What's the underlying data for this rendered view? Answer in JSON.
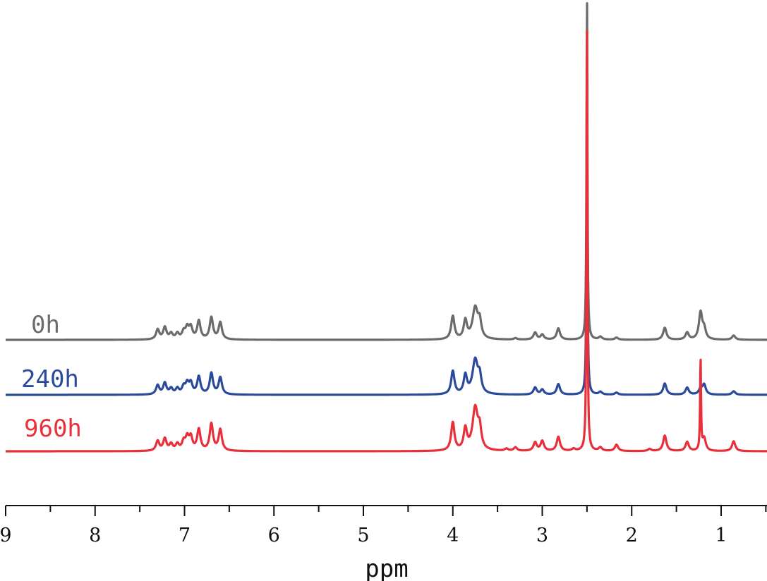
{
  "chart_data": {
    "type": "line",
    "title": "",
    "xlabel": "ppm",
    "ylabel": "",
    "x_reversed": true,
    "xlim": [
      9,
      0.5
    ],
    "x_ticks": [
      9,
      8,
      7,
      6,
      5,
      4,
      3,
      2,
      1
    ],
    "x_tick_labels": [
      "9",
      "8",
      "7",
      "6",
      "5",
      "4",
      "3",
      "2",
      "1"
    ],
    "grid": false,
    "legend": "inline labels left of each trace",
    "offset_units": "arbitrary intensity (stacked spectra)",
    "series": [
      {
        "name": "0h",
        "color": "#6b6b6b",
        "baseline_offset": 158,
        "peaks": [
          {
            "ppm": 7.3,
            "height": 14
          },
          {
            "ppm": 7.22,
            "height": 17
          },
          {
            "ppm": 7.15,
            "height": 8
          },
          {
            "ppm": 7.08,
            "height": 8
          },
          {
            "ppm": 7.01,
            "height": 10
          },
          {
            "ppm": 6.97,
            "height": 15
          },
          {
            "ppm": 6.93,
            "height": 16
          },
          {
            "ppm": 6.84,
            "height": 26
          },
          {
            "ppm": 6.7,
            "height": 31
          },
          {
            "ppm": 6.6,
            "height": 24
          },
          {
            "ppm": 4.0,
            "height": 33
          },
          {
            "ppm": 3.86,
            "height": 26
          },
          {
            "ppm": 3.75,
            "height": 44
          },
          {
            "ppm": 3.7,
            "height": 22
          },
          {
            "ppm": 3.3,
            "height": 2
          },
          {
            "ppm": 3.08,
            "height": 10
          },
          {
            "ppm": 3.0,
            "height": 7
          },
          {
            "ppm": 2.82,
            "height": 16
          },
          {
            "ppm": 2.5,
            "height": 490
          },
          {
            "ppm": 2.35,
            "height": 4
          },
          {
            "ppm": 2.17,
            "height": 3
          },
          {
            "ppm": 1.63,
            "height": 17
          },
          {
            "ppm": 1.38,
            "height": 10
          },
          {
            "ppm": 1.23,
            "height": 38
          },
          {
            "ppm": 1.19,
            "height": 14
          },
          {
            "ppm": 0.86,
            "height": 6
          }
        ]
      },
      {
        "name": "240h",
        "color": "#2b4a9a",
        "baseline_offset": 80,
        "peaks": [
          {
            "ppm": 7.3,
            "height": 13
          },
          {
            "ppm": 7.22,
            "height": 16
          },
          {
            "ppm": 7.15,
            "height": 8
          },
          {
            "ppm": 7.08,
            "height": 8
          },
          {
            "ppm": 7.01,
            "height": 10
          },
          {
            "ppm": 6.97,
            "height": 14
          },
          {
            "ppm": 6.93,
            "height": 15
          },
          {
            "ppm": 6.84,
            "height": 25
          },
          {
            "ppm": 6.7,
            "height": 30
          },
          {
            "ppm": 6.6,
            "height": 24
          },
          {
            "ppm": 4.0,
            "height": 33
          },
          {
            "ppm": 3.86,
            "height": 26
          },
          {
            "ppm": 3.75,
            "height": 48
          },
          {
            "ppm": 3.7,
            "height": 22
          },
          {
            "ppm": 3.08,
            "height": 10
          },
          {
            "ppm": 3.0,
            "height": 7
          },
          {
            "ppm": 2.82,
            "height": 15
          },
          {
            "ppm": 2.5,
            "height": 470
          },
          {
            "ppm": 2.35,
            "height": 4
          },
          {
            "ppm": 2.17,
            "height": 3
          },
          {
            "ppm": 1.63,
            "height": 16
          },
          {
            "ppm": 1.38,
            "height": 10
          },
          {
            "ppm": 1.23,
            "height": 8
          },
          {
            "ppm": 1.19,
            "height": 14
          },
          {
            "ppm": 0.86,
            "height": 5
          }
        ]
      },
      {
        "name": "960h",
        "color": "#e8303a",
        "baseline_offset": 0,
        "peaks": [
          {
            "ppm": 7.3,
            "height": 14
          },
          {
            "ppm": 7.22,
            "height": 17
          },
          {
            "ppm": 7.15,
            "height": 9
          },
          {
            "ppm": 7.08,
            "height": 9
          },
          {
            "ppm": 7.01,
            "height": 12
          },
          {
            "ppm": 6.97,
            "height": 17
          },
          {
            "ppm": 6.93,
            "height": 18
          },
          {
            "ppm": 6.84,
            "height": 30
          },
          {
            "ppm": 6.7,
            "height": 38
          },
          {
            "ppm": 6.6,
            "height": 30
          },
          {
            "ppm": 4.0,
            "height": 40
          },
          {
            "ppm": 3.86,
            "height": 30
          },
          {
            "ppm": 3.75,
            "height": 60
          },
          {
            "ppm": 3.7,
            "height": 26
          },
          {
            "ppm": 3.4,
            "height": 3
          },
          {
            "ppm": 3.3,
            "height": 5
          },
          {
            "ppm": 3.08,
            "height": 12
          },
          {
            "ppm": 3.0,
            "height": 14
          },
          {
            "ppm": 2.82,
            "height": 20
          },
          {
            "ppm": 2.65,
            "height": 3
          },
          {
            "ppm": 2.5,
            "height": 612
          },
          {
            "ppm": 2.35,
            "height": 5
          },
          {
            "ppm": 2.17,
            "height": 9
          },
          {
            "ppm": 1.8,
            "height": 3
          },
          {
            "ppm": 1.63,
            "height": 22
          },
          {
            "ppm": 1.38,
            "height": 13
          },
          {
            "ppm": 1.23,
            "height": 130
          },
          {
            "ppm": 1.19,
            "height": 18
          },
          {
            "ppm": 0.86,
            "height": 14
          }
        ]
      }
    ]
  }
}
